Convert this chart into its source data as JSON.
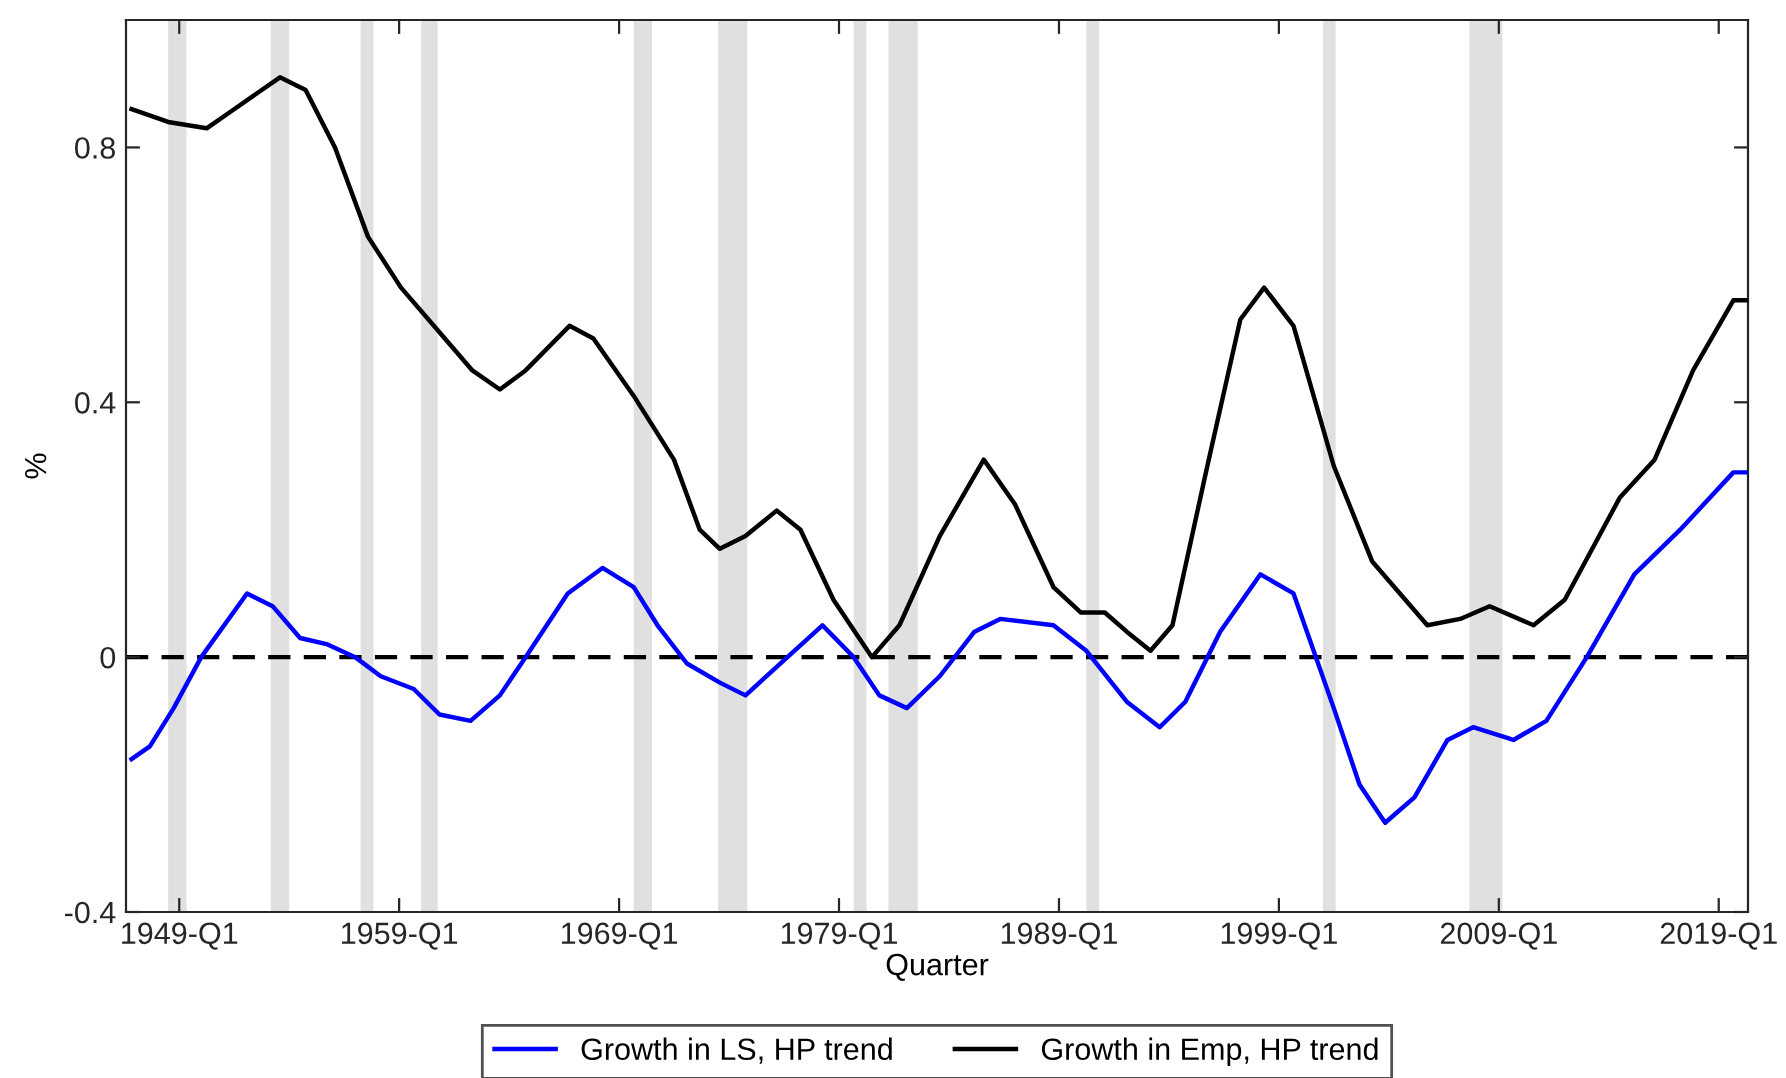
{
  "chart_data": {
    "type": "line",
    "xlabel": "Quarter",
    "ylabel": "%",
    "xlim": [
      "1946-08",
      "2020-05"
    ],
    "ylim": [
      -0.4,
      1.0
    ],
    "xticks": [
      {
        "value": "1949-01",
        "label": "1949-Q1"
      },
      {
        "value": "1959-01",
        "label": "1959-Q1"
      },
      {
        "value": "1969-01",
        "label": "1969-Q1"
      },
      {
        "value": "1979-01",
        "label": "1979-Q1"
      },
      {
        "value": "1989-01",
        "label": "1989-Q1"
      },
      {
        "value": "1999-01",
        "label": "1999-Q1"
      },
      {
        "value": "2009-01",
        "label": "2009-Q1"
      },
      {
        "value": "2019-01",
        "label": "2019-Q1"
      }
    ],
    "yticks": [
      -0.4,
      0,
      0.4,
      0.8
    ],
    "grid": false,
    "legend": "bottom",
    "line_style": "solid",
    "marker": "none",
    "series": [
      {
        "name": "Growth in LS, HP trend",
        "color": "#0000ff",
        "x": [
          "1946-11",
          "1947-09",
          "1948-10",
          "1950-01",
          "1952-02",
          "1953-04",
          "1954-07",
          "1955-10",
          "1957-01",
          "1958-03",
          "1959-09",
          "1960-11",
          "1962-04",
          "1963-08",
          "1964-10",
          "1966-09",
          "1968-04",
          "1969-09",
          "1970-10",
          "1972-02",
          "1973-08",
          "1974-10",
          "1976-05",
          "1978-04",
          "1979-09",
          "1980-11",
          "1982-02",
          "1983-08",
          "1985-03",
          "1986-05",
          "1988-10",
          "1990-04",
          "1992-02",
          "1993-08",
          "1994-10",
          "1996-05",
          "1998-03",
          "1999-09",
          "2001-07",
          "2002-09",
          "2003-11",
          "2005-03",
          "2006-09",
          "2007-11",
          "2009-09",
          "2011-03",
          "2013-01",
          "2015-03",
          "2017-04",
          "2019-09",
          "2020-04"
        ],
        "values": [
          -0.16,
          -0.14,
          -0.08,
          0.0,
          0.1,
          0.08,
          0.03,
          0.02,
          0.0,
          -0.03,
          -0.05,
          -0.09,
          -0.1,
          -0.06,
          0.0,
          0.1,
          0.14,
          0.11,
          0.05,
          -0.01,
          -0.04,
          -0.06,
          -0.01,
          0.05,
          0.0,
          -0.06,
          -0.08,
          -0.03,
          0.04,
          0.06,
          0.05,
          0.01,
          -0.07,
          -0.11,
          -0.07,
          0.04,
          0.13,
          0.1,
          -0.08,
          -0.2,
          -0.26,
          -0.22,
          -0.13,
          -0.11,
          -0.13,
          -0.1,
          0.0,
          0.13,
          0.2,
          0.29,
          0.29
        ]
      },
      {
        "name": "Growth in Emp, HP trend",
        "color": "#000000",
        "x": [
          "1946-11",
          "1948-07",
          "1950-04",
          "1951-07",
          "1953-08",
          "1954-10",
          "1956-02",
          "1957-08",
          "1959-02",
          "1960-11",
          "1962-05",
          "1963-08",
          "1964-10",
          "1966-10",
          "1967-11",
          "1969-09",
          "1971-07",
          "1972-09",
          "1973-08",
          "1974-10",
          "1976-03",
          "1977-04",
          "1978-10",
          "1980-07",
          "1981-10",
          "1983-08",
          "1985-08",
          "1987-01",
          "1988-10",
          "1990-01",
          "1991-02",
          "1992-02",
          "1993-03",
          "1994-03",
          "1995-10",
          "1997-04",
          "1998-05",
          "1999-09",
          "2001-07",
          "2003-04",
          "2005-10",
          "2007-04",
          "2008-08",
          "2010-08",
          "2012-01",
          "2014-07",
          "2016-02",
          "2017-11",
          "2019-09",
          "2020-04"
        ],
        "values": [
          0.86,
          0.84,
          0.83,
          0.86,
          0.91,
          0.89,
          0.8,
          0.66,
          0.58,
          0.51,
          0.45,
          0.42,
          0.45,
          0.52,
          0.5,
          0.41,
          0.31,
          0.2,
          0.17,
          0.19,
          0.23,
          0.2,
          0.09,
          0.0,
          0.05,
          0.19,
          0.31,
          0.24,
          0.11,
          0.07,
          0.07,
          0.04,
          0.01,
          0.05,
          0.3,
          0.53,
          0.58,
          0.52,
          0.3,
          0.15,
          0.05,
          0.06,
          0.08,
          0.05,
          0.09,
          0.25,
          0.31,
          0.45,
          0.56,
          0.56
        ]
      }
    ],
    "ref_lines": [
      {
        "axis": "y",
        "value": 0,
        "color": "#000000",
        "line_style": "dashed"
      }
    ],
    "bands": [
      {
        "axis": "x",
        "from": "1948-07",
        "to": "1949-05",
        "color": "#e0e0e0"
      },
      {
        "axis": "x",
        "from": "1953-03",
        "to": "1954-01",
        "color": "#e0e0e0"
      },
      {
        "axis": "x",
        "from": "1957-04",
        "to": "1957-11",
        "color": "#e0e0e0"
      },
      {
        "axis": "x",
        "from": "1960-01",
        "to": "1960-10",
        "color": "#e0e0e0"
      },
      {
        "axis": "x",
        "from": "1969-09",
        "to": "1970-07",
        "color": "#e0e0e0"
      },
      {
        "axis": "x",
        "from": "1973-07",
        "to": "1974-11",
        "color": "#e0e0e0"
      },
      {
        "axis": "x",
        "from": "1979-09",
        "to": "1980-04",
        "color": "#e0e0e0"
      },
      {
        "axis": "x",
        "from": "1981-04",
        "to": "1982-08",
        "color": "#e0e0e0"
      },
      {
        "axis": "x",
        "from": "1990-04",
        "to": "1990-11",
        "color": "#e0e0e0"
      },
      {
        "axis": "x",
        "from": "2001-01",
        "to": "2001-08",
        "color": "#e0e0e0"
      },
      {
        "axis": "x",
        "from": "2007-09",
        "to": "2009-03",
        "color": "#e0e0e0"
      }
    ]
  }
}
